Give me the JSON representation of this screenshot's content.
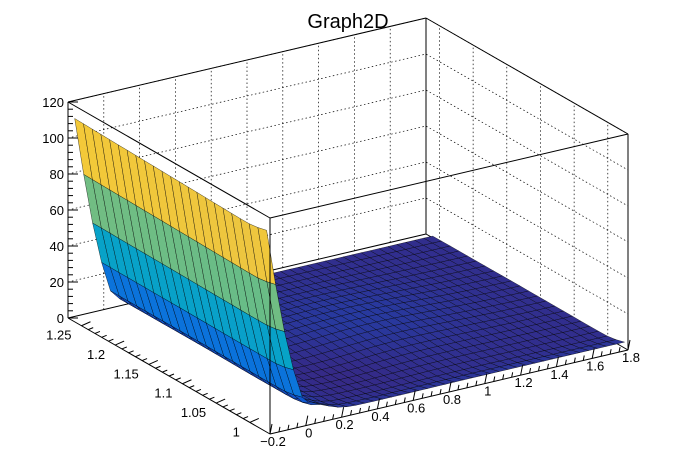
{
  "chart_data": {
    "type": "surface",
    "title": "Graph2D",
    "xlabel": "",
    "ylabel": "",
    "zlabel": "",
    "x_range": [
      -0.2,
      1.8
    ],
    "y_range": [
      0.97,
      1.27
    ],
    "z_range": [
      0,
      120
    ],
    "x_ticks": [
      "−0.2",
      "0",
      "0.2",
      "0.4",
      "0.6",
      "0.8",
      "1",
      "1.2",
      "1.4",
      "1.6",
      "1.8"
    ],
    "y_ticks": [
      "1",
      "1.05",
      "1.1",
      "1.15",
      "1.2",
      "1.25"
    ],
    "z_ticks": [
      "0",
      "20",
      "40",
      "60",
      "80",
      "100",
      "120"
    ],
    "grid": true,
    "colormap": [
      "#352a87",
      "#0363e1",
      "#1485d4",
      "#06a7c6",
      "#38b99e",
      "#92bf73",
      "#d9ba56",
      "#fcce2e",
      "#f9fb0e"
    ],
    "surface_description_points": [
      {
        "x": -0.2,
        "y": 1.25,
        "z": 112
      },
      {
        "x": -0.2,
        "y": 1.15,
        "z": 110
      },
      {
        "x": -0.1,
        "y": 1.25,
        "z": 60
      },
      {
        "x": 0.0,
        "y": 1.25,
        "z": 5
      },
      {
        "x": 0.0,
        "y": 1.0,
        "z": 2
      },
      {
        "x": 1.8,
        "y": 1.25,
        "z": 2
      },
      {
        "x": 1.8,
        "y": 1.0,
        "z": 1
      }
    ]
  }
}
